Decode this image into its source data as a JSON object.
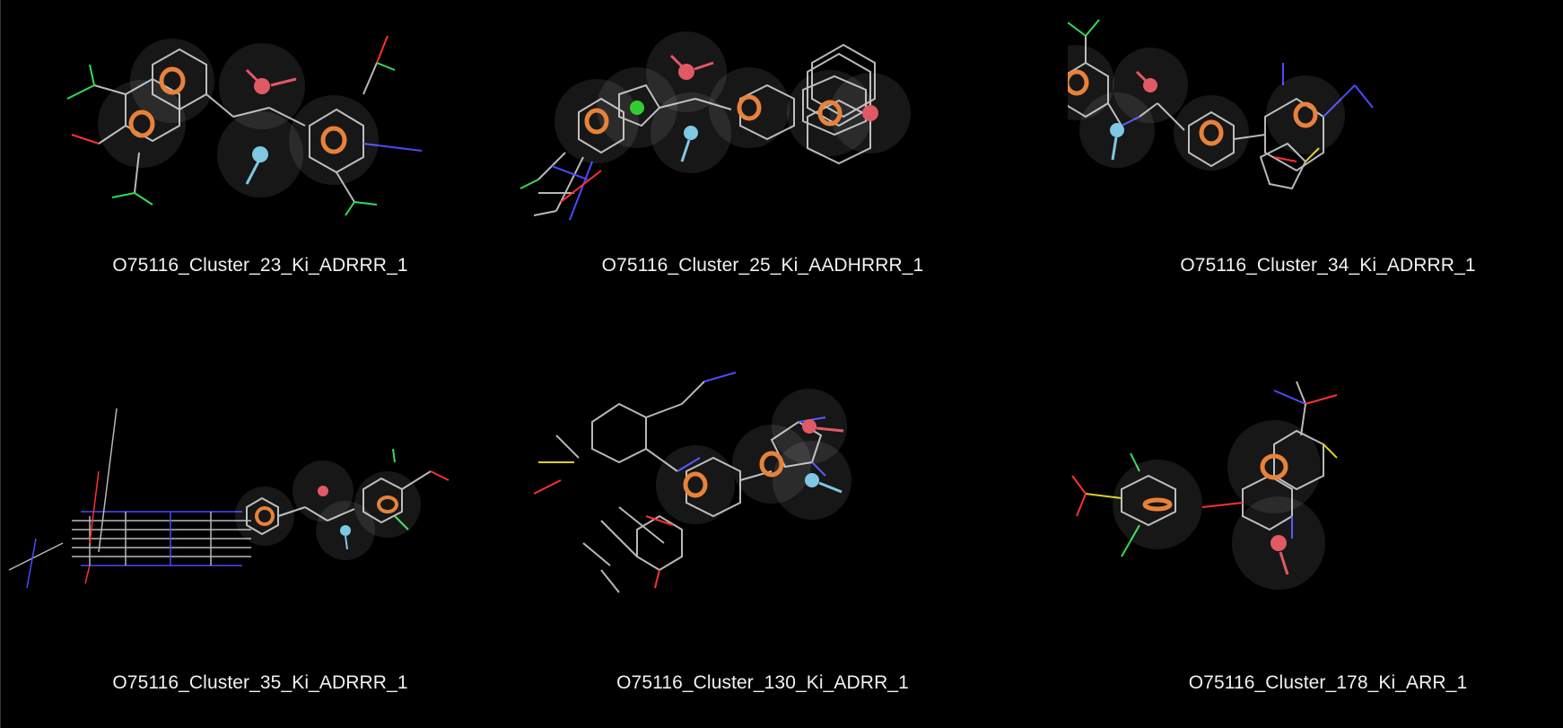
{
  "panels": [
    {
      "title": "O75116_Cluster_23_Ki_ADRRR_1"
    },
    {
      "title": "O75116_Cluster_25_Ki_AADHRRR_1"
    },
    {
      "title": "O75116_Cluster_34_Ki_ADRRR_1"
    },
    {
      "title": "O75116_Cluster_35_Ki_ADRRR_1"
    },
    {
      "title": "O75116_Cluster_130_Ki_ADRR_1"
    },
    {
      "title": "O75116_Cluster_178_Ki_ARR_1"
    }
  ],
  "colors": {
    "background": "#000000",
    "ring_feature": "#e8823a",
    "acceptor": "#e05a66",
    "donor": "#7ec8e3",
    "hydrophobe": "#33cc33",
    "bond_carbon": "#b8b8b8",
    "bond_nitrogen": "#4a4aff",
    "bond_oxygen": "#ff3030",
    "bond_fluorine": "#33dd55",
    "bond_sulfur": "#e0d020",
    "caption": "#f2f2f2"
  }
}
